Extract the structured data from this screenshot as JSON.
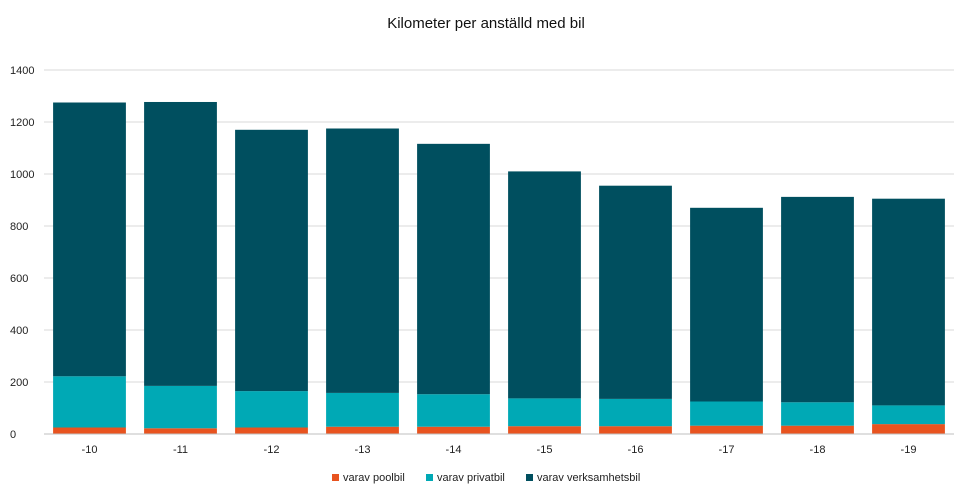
{
  "chart_data": {
    "type": "bar",
    "stacked": true,
    "title": "Kilometer per anställd med bil",
    "xlabel": "",
    "ylabel": "",
    "categories": [
      "-10",
      "-11",
      "-12",
      "-13",
      "-14",
      "-15",
      "-16",
      "-17",
      "-18",
      "-19"
    ],
    "series": [
      {
        "name": "varav poolbil",
        "color": "#e8531f",
        "values": [
          25,
          22,
          25,
          28,
          28,
          30,
          30,
          32,
          32,
          38
        ]
      },
      {
        "name": "varav privatbil",
        "color": "#00a9b5",
        "values": [
          197,
          163,
          140,
          130,
          125,
          107,
          105,
          93,
          90,
          72
        ]
      },
      {
        "name": "varav verksamhetsbil",
        "color": "#004f5f",
        "values": [
          1053,
          1092,
          1005,
          1017,
          963,
          873,
          820,
          745,
          790,
          795
        ]
      }
    ],
    "ylim": [
      0,
      1400
    ],
    "yticks": [
      0,
      200,
      400,
      600,
      800,
      1000,
      1200,
      1400
    ],
    "grid": true,
    "legend": "bottom"
  }
}
